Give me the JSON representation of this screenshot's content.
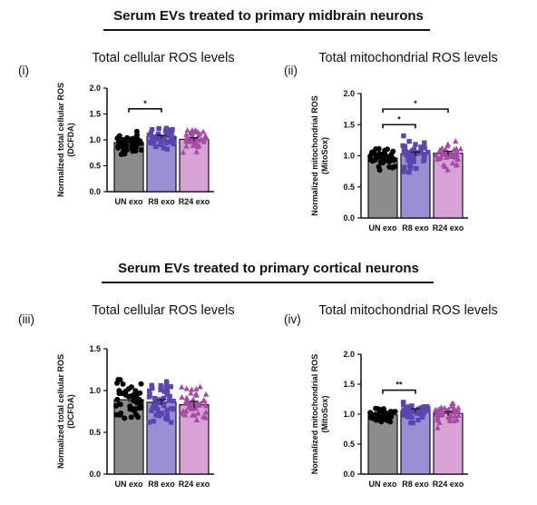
{
  "sections": [
    {
      "title": "Serum EVs treated to primary midbrain neurons"
    },
    {
      "title": "Serum EVs treated to primary cortical neurons"
    }
  ],
  "chart_data": [
    {
      "panel": "(i)",
      "type": "bar",
      "title": "Total cellular ROS levels",
      "ylabel": "Normalized total cellular ROS (DCFDA)",
      "ylim": [
        0,
        2.0
      ],
      "yticks": [
        "0.0",
        "0.5",
        "1.0",
        "1.5",
        "2.0"
      ],
      "categories": [
        "UN exo",
        "R8 exo",
        "R24 exo"
      ],
      "values": [
        0.95,
        1.06,
        1.01
      ],
      "errors": [
        0.04,
        0.03,
        0.03
      ],
      "bar_colors": [
        "#8c8c8c",
        "#9a8fd4",
        "#d7a3d6"
      ],
      "point_colors": [
        "#000000",
        "#5b45b0",
        "#a64aa6"
      ],
      "point_markers": [
        "circle",
        "square",
        "triangle"
      ],
      "spread": [
        0.16,
        0.15,
        0.14
      ],
      "n_points": 40,
      "significance": [
        {
          "from": 0,
          "to": 1,
          "label": "*",
          "y": 1.6
        }
      ]
    },
    {
      "panel": "(ii)",
      "type": "bar",
      "title": "Total mitochondrial ROS levels",
      "ylabel": "Normalized mitochondrial ROS (MitoSox)",
      "ylim": [
        0,
        2.0
      ],
      "yticks": [
        "0.0",
        "0.5",
        "1.0",
        "1.5",
        "2.0"
      ],
      "categories": [
        "UN exo",
        "R8 exo",
        "R24 exo"
      ],
      "values": [
        0.96,
        1.03,
        1.04
      ],
      "errors": [
        0.03,
        0.03,
        0.03
      ],
      "bar_colors": [
        "#8c8c8c",
        "#9a8fd4",
        "#d7a3d6"
      ],
      "point_colors": [
        "#000000",
        "#5b45b0",
        "#a64aa6"
      ],
      "point_markers": [
        "circle",
        "square",
        "triangle"
      ],
      "spread": [
        0.15,
        0.17,
        0.16
      ],
      "n_points": 40,
      "significance": [
        {
          "from": 0,
          "to": 1,
          "label": "*",
          "y": 1.5
        },
        {
          "from": 0,
          "to": 2,
          "label": "*",
          "y": 1.75
        }
      ]
    },
    {
      "panel": "(iii)",
      "type": "bar",
      "title": "Total cellular ROS levels",
      "ylabel": "Normalized total cellular ROS (DCFDA)",
      "ylim": [
        0,
        1.5
      ],
      "yticks": [
        "0.0",
        "0.5",
        "1.0",
        "1.5"
      ],
      "categories": [
        "UN exo",
        "R8 exo",
        "R24 exo"
      ],
      "values": [
        0.89,
        0.86,
        0.83
      ],
      "errors": [
        0.03,
        0.03,
        0.04
      ],
      "bar_colors": [
        "#8c8c8c",
        "#9a8fd4",
        "#d7a3d6"
      ],
      "point_colors": [
        "#000000",
        "#5b45b0",
        "#a64aa6"
      ],
      "point_markers": [
        "circle",
        "square",
        "triangle"
      ],
      "spread": [
        0.16,
        0.19,
        0.18
      ],
      "n_points": 45,
      "significance": []
    },
    {
      "panel": "(iv)",
      "type": "bar",
      "title": "Total mitochondrial ROS levels",
      "ylabel": "Normalized mitochondrial ROS (MitoSox)",
      "ylim": [
        0,
        2.0
      ],
      "yticks": [
        "0.0",
        "0.5",
        "1.0",
        "1.5",
        "2.0"
      ],
      "categories": [
        "UN exo",
        "R8 exo",
        "R24 exo"
      ],
      "values": [
        0.99,
        1.06,
        1.01
      ],
      "errors": [
        0.02,
        0.03,
        0.03
      ],
      "bar_colors": [
        "#8c8c8c",
        "#9a8fd4",
        "#d7a3d6"
      ],
      "point_colors": [
        "#000000",
        "#5b45b0",
        "#a64aa6"
      ],
      "point_markers": [
        "circle",
        "square",
        "triangle"
      ],
      "spread": [
        0.08,
        0.12,
        0.12
      ],
      "n_points": 45,
      "significance": [
        {
          "from": 0,
          "to": 1,
          "label": "**",
          "y": 1.4
        }
      ]
    }
  ]
}
